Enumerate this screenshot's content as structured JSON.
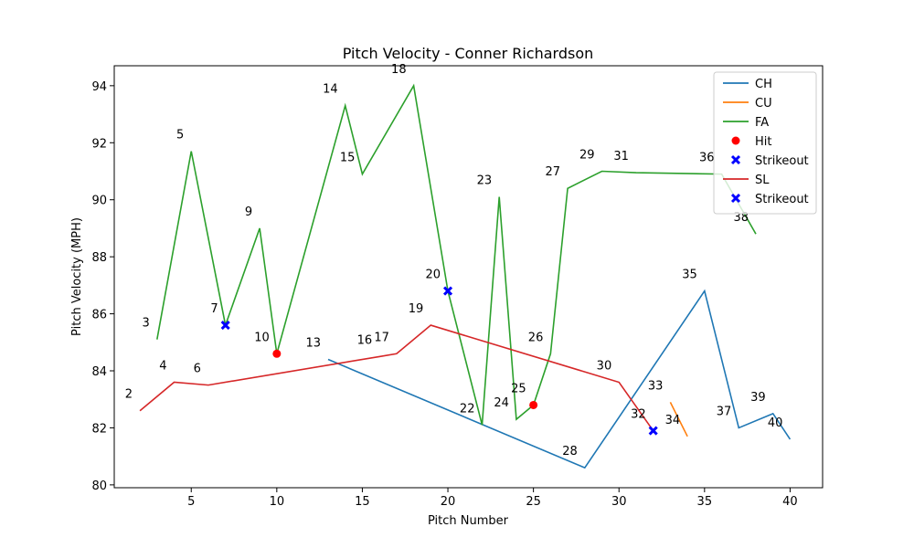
{
  "chart_data": {
    "type": "line",
    "title": "Pitch Velocity - Conner Richardson",
    "xlabel": "Pitch Number",
    "ylabel": "Pitch Velocity (MPH)",
    "xlim": [
      0.5,
      41.9
    ],
    "ylim": [
      79.9,
      94.7
    ],
    "xticks": [
      5,
      10,
      15,
      20,
      25,
      30,
      35,
      40
    ],
    "yticks": [
      80,
      82,
      84,
      86,
      88,
      90,
      92,
      94
    ],
    "grid": false,
    "legend_position": "top-right",
    "series": [
      {
        "name": "CH",
        "kind": "line",
        "color": "#1f77b4",
        "points": [
          [
            13,
            84.4
          ],
          [
            28,
            80.6
          ],
          [
            35,
            86.8
          ],
          [
            37,
            82.0
          ],
          [
            39,
            82.5
          ],
          [
            40,
            81.6
          ]
        ]
      },
      {
        "name": "CU",
        "kind": "line",
        "color": "#ff7f0e",
        "points": [
          [
            33,
            82.9
          ],
          [
            34,
            81.7
          ]
        ]
      },
      {
        "name": "FA",
        "kind": "line",
        "color": "#2ca02c",
        "points": [
          [
            3,
            85.1
          ],
          [
            5,
            91.7
          ],
          [
            7,
            85.6
          ],
          [
            9,
            89.0
          ],
          [
            10,
            84.6
          ],
          [
            14,
            93.3
          ],
          [
            15,
            90.9
          ],
          [
            18,
            94.0
          ],
          [
            20,
            86.8
          ],
          [
            22,
            82.1
          ],
          [
            23,
            90.1
          ],
          [
            24,
            82.3
          ],
          [
            25,
            82.8
          ],
          [
            26,
            84.6
          ],
          [
            27,
            90.4
          ],
          [
            29,
            91.0
          ],
          [
            31,
            90.95
          ],
          [
            36,
            90.9
          ],
          [
            38,
            88.8
          ]
        ]
      },
      {
        "name": "Hit",
        "kind": "scatter",
        "marker": "circle",
        "color": "#ff0000",
        "points": [
          [
            10,
            84.6
          ],
          [
            25,
            82.8
          ]
        ]
      },
      {
        "name": "Strikeout",
        "kind": "scatter",
        "marker": "x",
        "color": "#0000ff",
        "points": [
          [
            7,
            85.6
          ],
          [
            20,
            86.8
          ]
        ]
      },
      {
        "name": "SL",
        "kind": "line",
        "color": "#d62728",
        "points": [
          [
            2,
            82.6
          ],
          [
            4,
            83.6
          ],
          [
            6,
            83.5
          ],
          [
            16,
            84.5
          ],
          [
            17,
            84.6
          ],
          [
            19,
            85.6
          ],
          [
            30,
            83.6
          ],
          [
            32,
            81.9
          ]
        ]
      },
      {
        "name": "Strikeout",
        "kind": "scatter",
        "marker": "x",
        "color": "#0000ff",
        "points": [
          [
            32,
            81.9
          ]
        ]
      }
    ],
    "annotations": [
      {
        "text": "2",
        "x": 2,
        "y": 82.6
      },
      {
        "text": "3",
        "x": 3,
        "y": 85.1
      },
      {
        "text": "4",
        "x": 4,
        "y": 83.6
      },
      {
        "text": "5",
        "x": 5,
        "y": 91.7
      },
      {
        "text": "6",
        "x": 6,
        "y": 83.5
      },
      {
        "text": "7",
        "x": 7,
        "y": 85.6
      },
      {
        "text": "9",
        "x": 9,
        "y": 89.0
      },
      {
        "text": "10",
        "x": 10,
        "y": 84.6
      },
      {
        "text": "13",
        "x": 13,
        "y": 84.4
      },
      {
        "text": "14",
        "x": 14,
        "y": 93.3
      },
      {
        "text": "15",
        "x": 15,
        "y": 90.9
      },
      {
        "text": "16",
        "x": 16,
        "y": 84.5
      },
      {
        "text": "17",
        "x": 17,
        "y": 84.6
      },
      {
        "text": "18",
        "x": 18,
        "y": 94.0
      },
      {
        "text": "19",
        "x": 19,
        "y": 85.6
      },
      {
        "text": "20",
        "x": 20,
        "y": 86.8
      },
      {
        "text": "22",
        "x": 22,
        "y": 82.1
      },
      {
        "text": "23",
        "x": 23,
        "y": 90.1
      },
      {
        "text": "24",
        "x": 24,
        "y": 82.3
      },
      {
        "text": "25",
        "x": 25,
        "y": 82.8
      },
      {
        "text": "26",
        "x": 26,
        "y": 84.6
      },
      {
        "text": "27",
        "x": 27,
        "y": 90.4
      },
      {
        "text": "28",
        "x": 28,
        "y": 80.6
      },
      {
        "text": "29",
        "x": 29,
        "y": 91.0
      },
      {
        "text": "30",
        "x": 30,
        "y": 83.6
      },
      {
        "text": "31",
        "x": 31,
        "y": 90.95
      },
      {
        "text": "32",
        "x": 32,
        "y": 81.9
      },
      {
        "text": "33",
        "x": 33,
        "y": 82.9
      },
      {
        "text": "34",
        "x": 34,
        "y": 81.7
      },
      {
        "text": "35",
        "x": 35,
        "y": 86.8
      },
      {
        "text": "36",
        "x": 36,
        "y": 90.9
      },
      {
        "text": "37",
        "x": 37,
        "y": 82.0
      },
      {
        "text": "38",
        "x": 38,
        "y": 88.8
      },
      {
        "text": "39",
        "x": 39,
        "y": 82.5
      },
      {
        "text": "40",
        "x": 40,
        "y": 81.6
      }
    ]
  }
}
